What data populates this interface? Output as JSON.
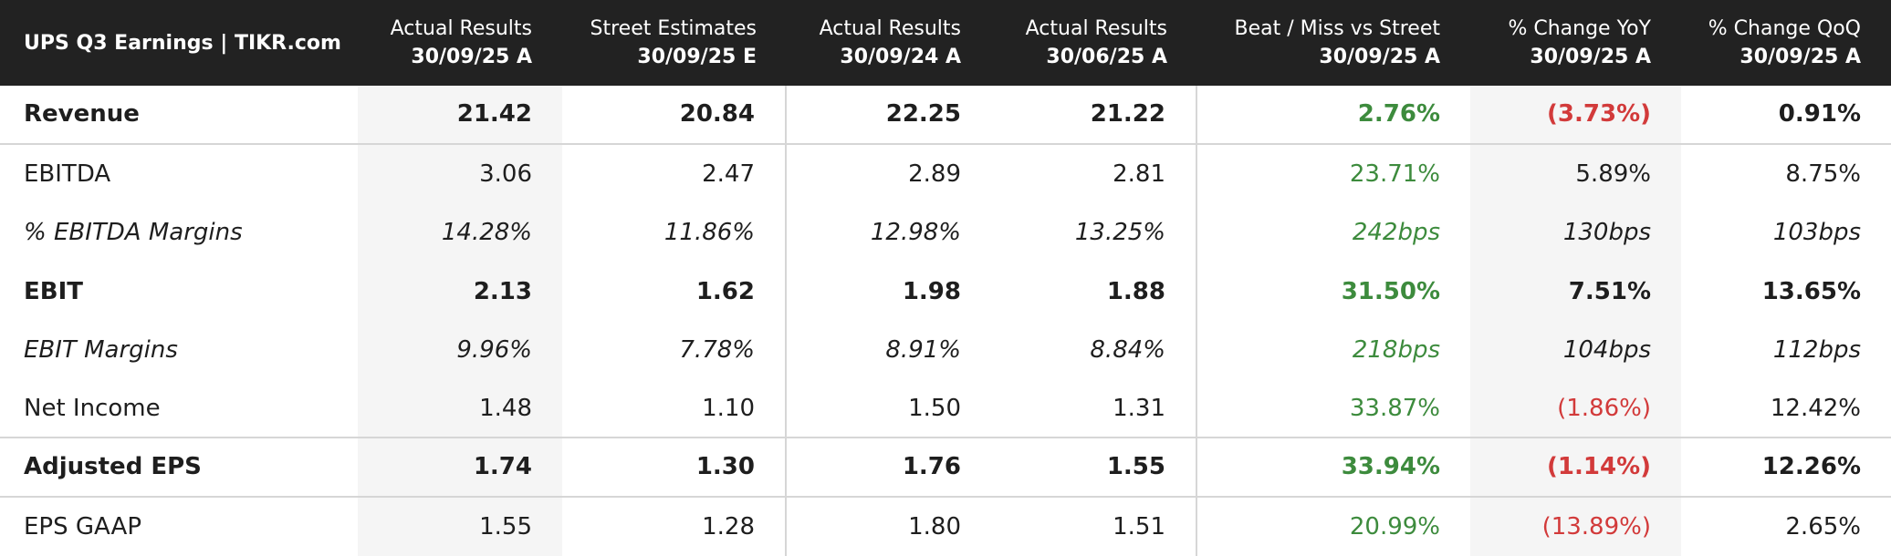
{
  "header": {
    "title": "UPS Q3 Earnings | TIKR.com",
    "columns": [
      {
        "line1": "Actual Results",
        "line2": "30/09/25 A"
      },
      {
        "line1": "Street Estimates",
        "line2": "30/09/25 E"
      },
      {
        "line1": "Actual Results",
        "line2": "30/09/24 A"
      },
      {
        "line1": "Actual Results",
        "line2": "30/06/25 A"
      },
      {
        "line1": "Beat / Miss vs Street",
        "line2": "30/09/25 A"
      },
      {
        "line1": "% Change YoY",
        "line2": "30/09/25 A"
      },
      {
        "line1": "% Change QoQ",
        "line2": "30/09/25 A"
      }
    ]
  },
  "table": {
    "rows": [
      {
        "label": "Revenue",
        "style": "bold",
        "cells": [
          "21.42",
          "20.84",
          "22.25",
          "21.22",
          "2.76%",
          "(3.73%)",
          "0.91%"
        ]
      },
      {
        "label": "EBITDA",
        "style": "normal",
        "cells": [
          "3.06",
          "2.47",
          "2.89",
          "2.81",
          "23.71%",
          "5.89%",
          "8.75%"
        ]
      },
      {
        "label": "% EBITDA Margins",
        "style": "italic",
        "cells": [
          "14.28%",
          "11.86%",
          "12.98%",
          "13.25%",
          "242bps",
          "130bps",
          "103bps"
        ]
      },
      {
        "label": "EBIT",
        "style": "bold",
        "cells": [
          "2.13",
          "1.62",
          "1.98",
          "1.88",
          "31.50%",
          "7.51%",
          "13.65%"
        ]
      },
      {
        "label": "EBIT Margins",
        "style": "italic",
        "cells": [
          "9.96%",
          "7.78%",
          "8.91%",
          "8.84%",
          "218bps",
          "104bps",
          "112bps"
        ]
      },
      {
        "label": "Net Income",
        "style": "normal",
        "cells": [
          "1.48",
          "1.10",
          "1.50",
          "1.31",
          "33.87%",
          "(1.86%)",
          "12.42%"
        ]
      },
      {
        "label": "Adjusted EPS",
        "style": "bold",
        "cells": [
          "1.74",
          "1.30",
          "1.76",
          "1.55",
          "33.94%",
          "(1.14%)",
          "12.26%"
        ]
      },
      {
        "label": "EPS GAAP",
        "style": "normal",
        "cells": [
          "1.55",
          "1.28",
          "1.80",
          "1.51",
          "20.99%",
          "(13.89%)",
          "2.65%"
        ]
      }
    ]
  }
}
